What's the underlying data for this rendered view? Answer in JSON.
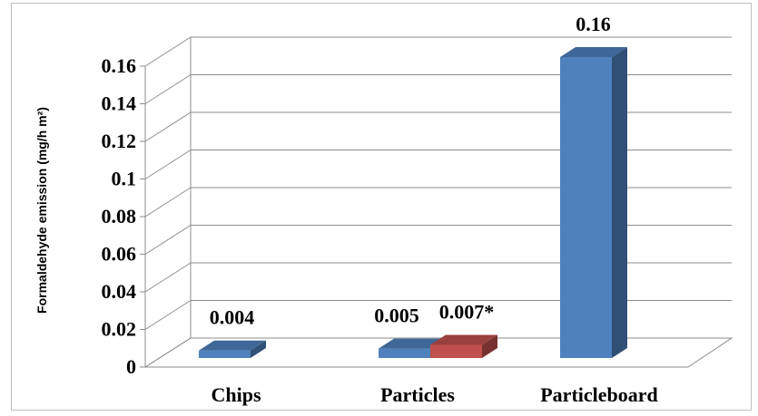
{
  "chart_data": {
    "type": "bar",
    "title": "",
    "xlabel": "",
    "ylabel": "Formaldehyde emission (mg/h m²)",
    "categories": [
      "Chips",
      "Particles",
      "Particleboard"
    ],
    "ylim": [
      0,
      0.16
    ],
    "yticks": [
      "0",
      "0.02",
      "0.04",
      "0.06",
      "0.08",
      "0.1",
      "0.12",
      "0.14",
      "0.16"
    ],
    "grid": true,
    "legend": "none",
    "bars": [
      {
        "category_index": 0,
        "slot": "center",
        "value": 0.004,
        "label": "0.004",
        "color": "#4f81bd"
      },
      {
        "category_index": 1,
        "slot": "left",
        "value": 0.005,
        "label": "0.005",
        "color": "#4f81bd"
      },
      {
        "category_index": 1,
        "slot": "right",
        "value": 0.007,
        "label": "0.007*",
        "color": "#c0504d"
      },
      {
        "category_index": 2,
        "slot": "center",
        "value": 0.16,
        "label": "0.16",
        "color": "#4f81bd"
      }
    ]
  }
}
